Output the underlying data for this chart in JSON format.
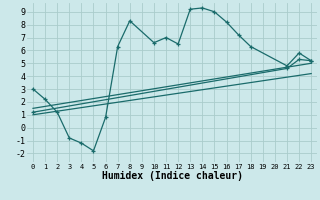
{
  "xlabel": "Humidex (Indice chaleur)",
  "bg_color": "#cce8ea",
  "grid_color": "#aacccc",
  "line_color": "#1a6b6b",
  "xlim": [
    -0.5,
    23.5
  ],
  "ylim": [
    -2.7,
    9.7
  ],
  "xticks": [
    0,
    1,
    2,
    3,
    4,
    5,
    6,
    7,
    8,
    9,
    10,
    11,
    12,
    13,
    14,
    15,
    16,
    17,
    18,
    19,
    20,
    21,
    22,
    23
  ],
  "yticks": [
    -2,
    -1,
    0,
    1,
    2,
    3,
    4,
    5,
    6,
    7,
    8,
    9
  ],
  "line1_x": [
    0,
    1,
    2,
    3,
    4,
    5,
    6,
    7,
    8,
    10,
    11,
    12,
    13,
    14,
    15,
    16,
    17,
    18,
    21,
    22,
    23
  ],
  "line1_y": [
    3.0,
    2.2,
    1.2,
    -0.8,
    -1.2,
    -1.8,
    0.8,
    6.3,
    8.3,
    6.6,
    7.0,
    6.5,
    9.2,
    9.3,
    9.0,
    8.2,
    7.2,
    6.3,
    4.8,
    5.8,
    5.2
  ],
  "line2_x": [
    0,
    23
  ],
  "line2_y": [
    1.5,
    5.0
  ],
  "line3_x": [
    0,
    23
  ],
  "line3_y": [
    1.0,
    4.2
  ],
  "line4_x": [
    0,
    21,
    22,
    23
  ],
  "line4_y": [
    1.2,
    4.6,
    5.3,
    5.2
  ]
}
